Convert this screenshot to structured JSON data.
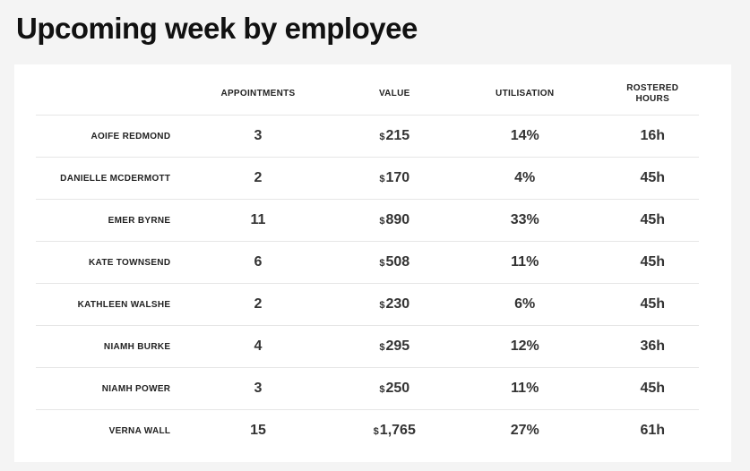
{
  "page": {
    "title": "Upcoming week by employee"
  },
  "table": {
    "headers": {
      "name": "",
      "appointments": "APPOINTMENTS",
      "value": "VALUE",
      "utilisation": "UTILISATION",
      "rostered_hours_line1": "ROSTERED",
      "rostered_hours_line2": "HOURS"
    },
    "currency_symbol": "$",
    "rows": [
      {
        "name": "AOIFE REDMOND",
        "appointments": "3",
        "value": "215",
        "utilisation": "14%",
        "hours": "16h"
      },
      {
        "name": "DANIELLE MCDERMOTT",
        "appointments": "2",
        "value": "170",
        "utilisation": "4%",
        "hours": "45h"
      },
      {
        "name": "EMER BYRNE",
        "appointments": "11",
        "value": "890",
        "utilisation": "33%",
        "hours": "45h"
      },
      {
        "name": "KATE TOWNSEND",
        "appointments": "6",
        "value": "508",
        "utilisation": "11%",
        "hours": "45h"
      },
      {
        "name": "KATHLEEN WALSHE",
        "appointments": "2",
        "value": "230",
        "utilisation": "6%",
        "hours": "45h"
      },
      {
        "name": "NIAMH BURKE",
        "appointments": "4",
        "value": "295",
        "utilisation": "12%",
        "hours": "36h"
      },
      {
        "name": "NIAMH POWER",
        "appointments": "3",
        "value": "250",
        "utilisation": "11%",
        "hours": "45h"
      },
      {
        "name": "VERNA WALL",
        "appointments": "15",
        "value": "1,765",
        "utilisation": "27%",
        "hours": "61h"
      }
    ]
  }
}
